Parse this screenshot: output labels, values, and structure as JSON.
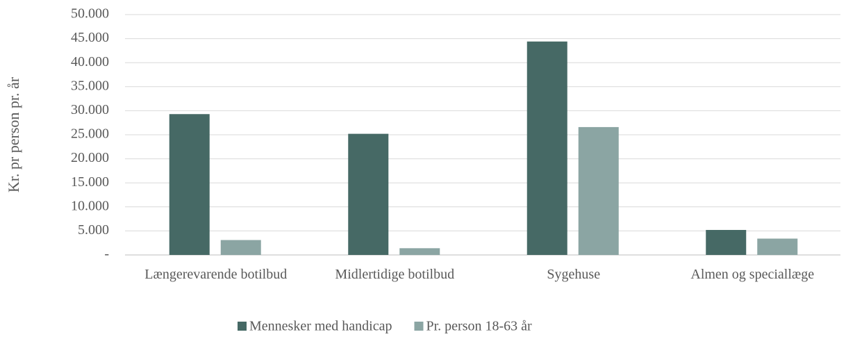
{
  "chart_data": {
    "type": "bar",
    "ylabel": "Kr. pr person pr. år",
    "categories": [
      "Længerevarende botilbud",
      "Midlertidige botilbud",
      "Sygehuse",
      "Almen og speciallæge"
    ],
    "series": [
      {
        "name": "Mennesker med handicap",
        "color": "#466965",
        "values": [
          29300,
          25200,
          44400,
          5200
        ]
      },
      {
        "name": "Pr. person 18-63 år",
        "color": "#8ba5a3",
        "values": [
          3100,
          1400,
          26600,
          3400
        ]
      }
    ],
    "ylim": [
      0,
      50000
    ],
    "yticks": [
      {
        "value": 0,
        "label": "-"
      },
      {
        "value": 5000,
        "label": "5.000"
      },
      {
        "value": 10000,
        "label": "10.000"
      },
      {
        "value": 15000,
        "label": "15.000"
      },
      {
        "value": 20000,
        "label": "20.000"
      },
      {
        "value": 25000,
        "label": "25.000"
      },
      {
        "value": 30000,
        "label": "30.000"
      },
      {
        "value": 35000,
        "label": "35.000"
      },
      {
        "value": 40000,
        "label": "40.000"
      },
      {
        "value": 45000,
        "label": "45.000"
      },
      {
        "value": 50000,
        "label": "50.000"
      }
    ],
    "grid": true,
    "legend": "bottom"
  }
}
